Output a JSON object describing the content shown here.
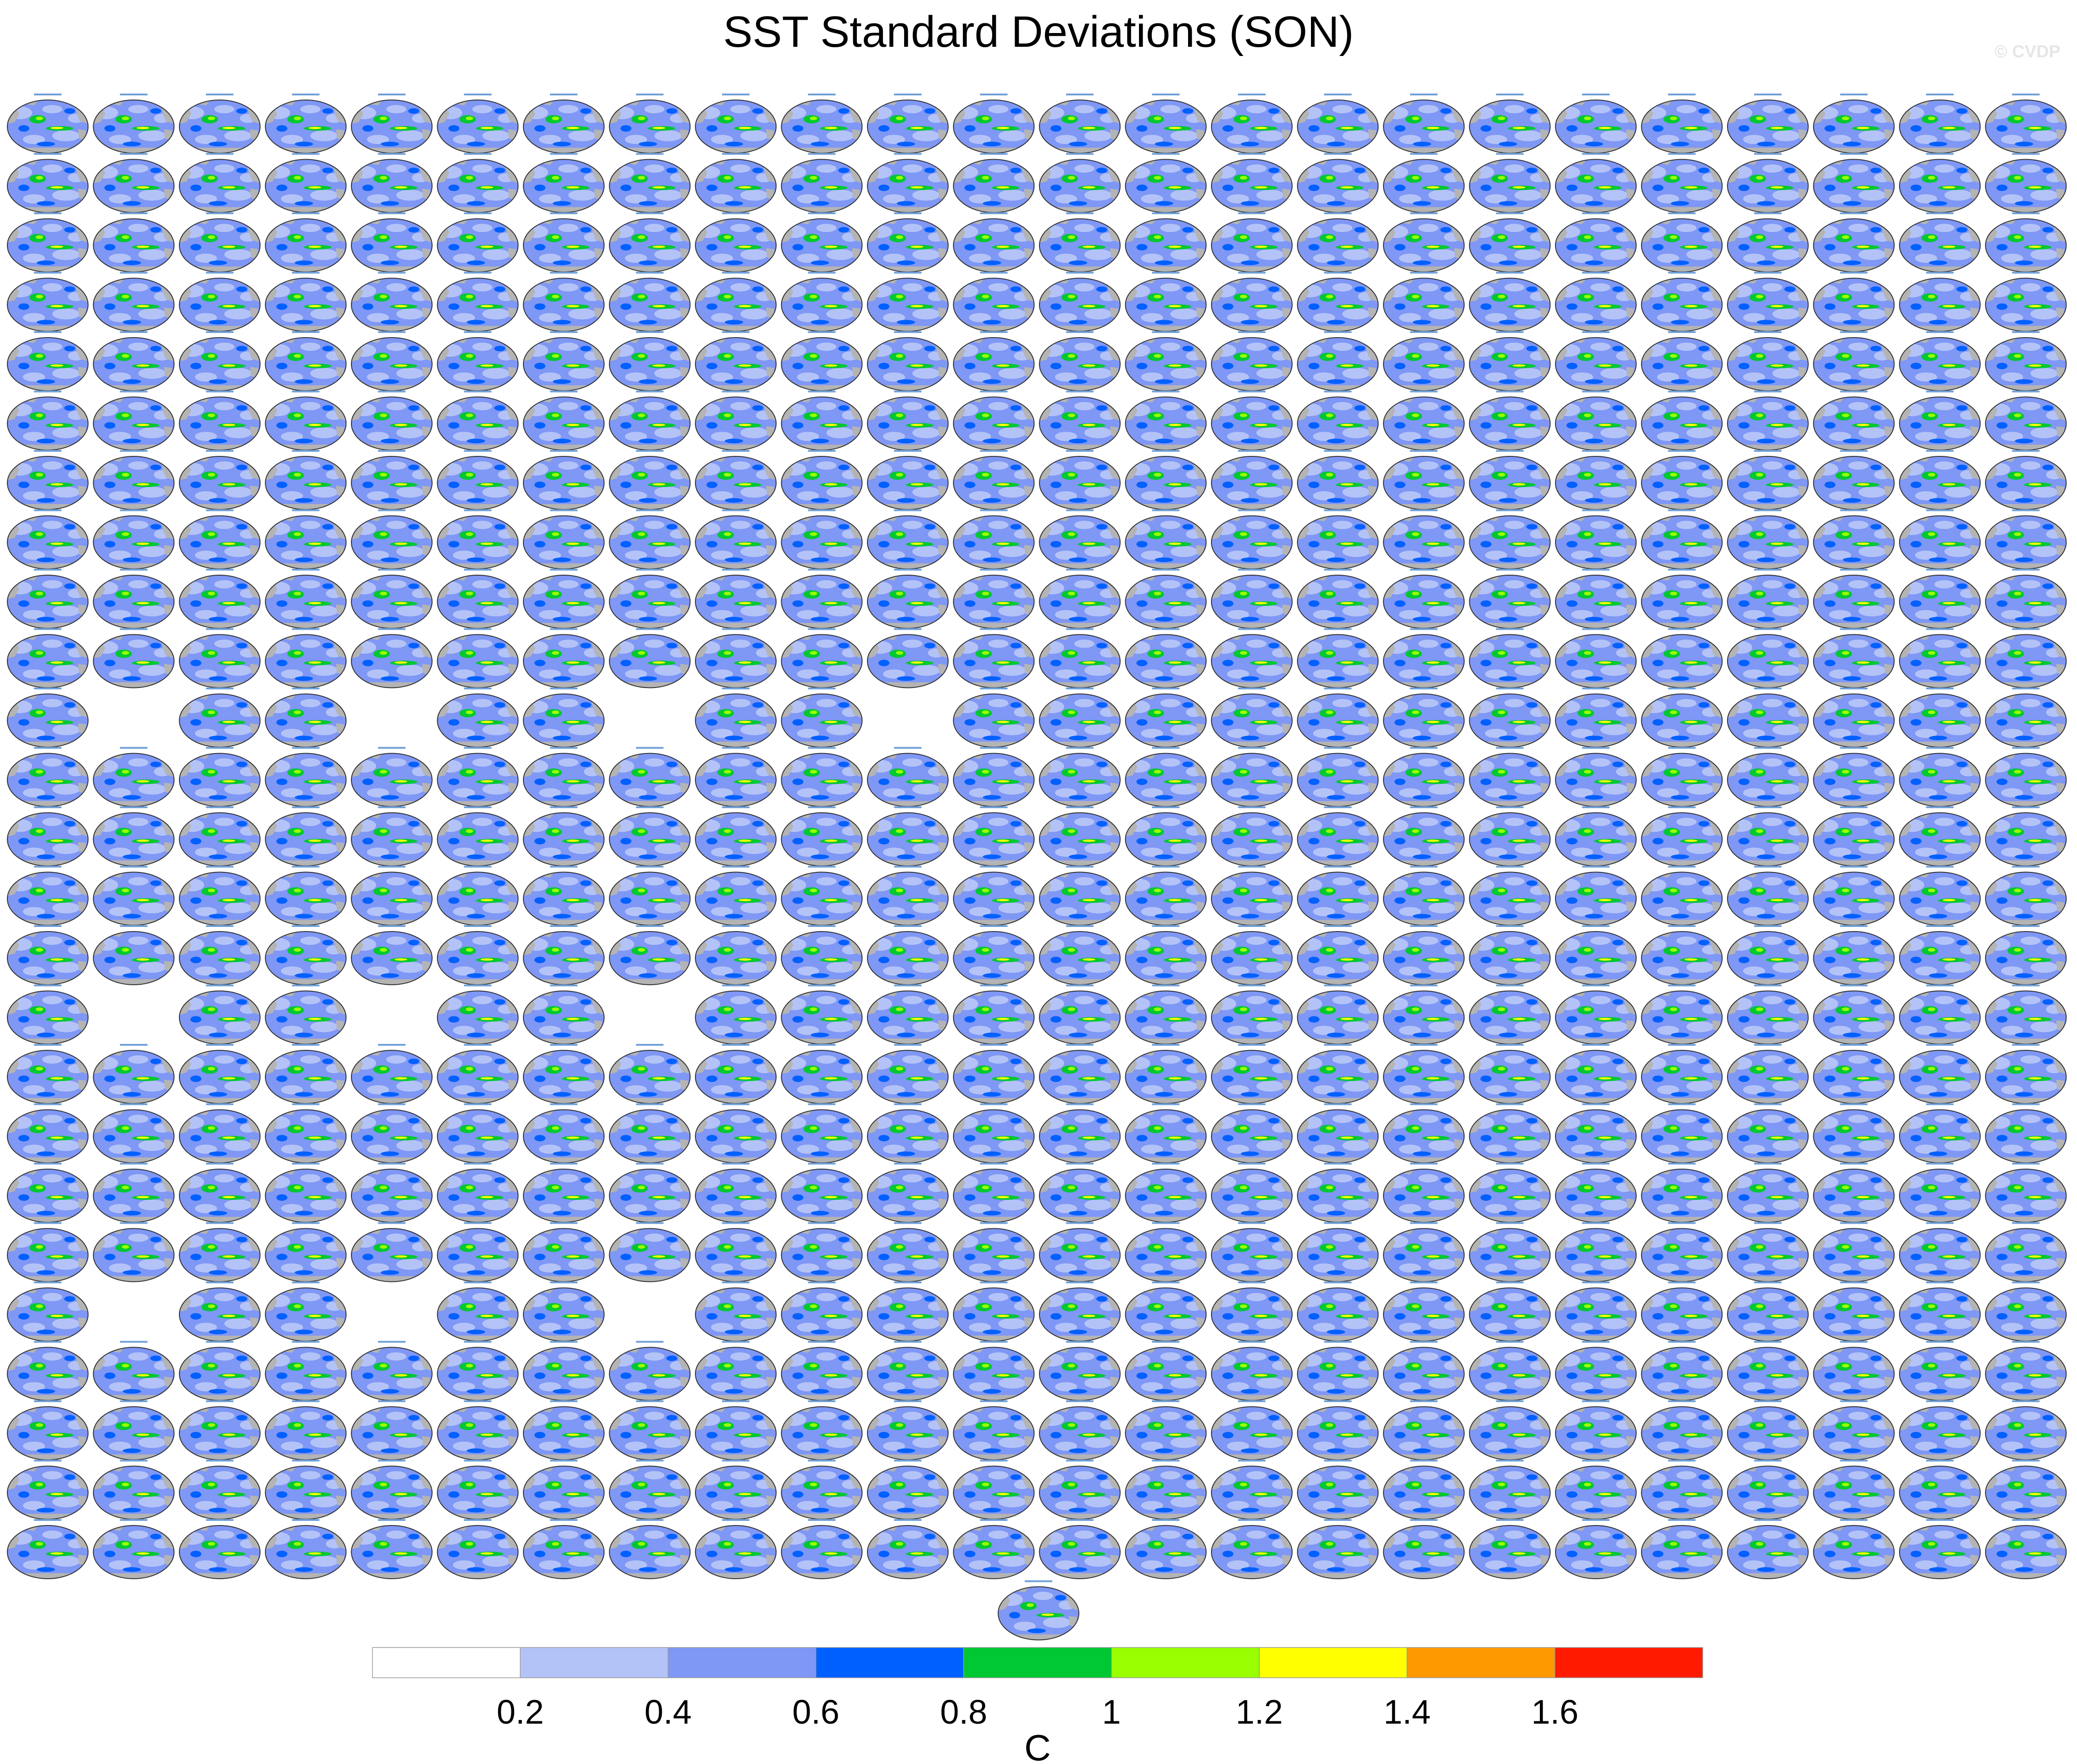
{
  "chart_data": {
    "type": "heatmap",
    "title": "SST Standard Deviations (SON)",
    "watermark": "© CVDP",
    "panel_grid": {
      "rows": 25,
      "columns": 24,
      "missing_panels": [
        [
          10,
          1
        ],
        [
          10,
          4
        ],
        [
          10,
          7
        ],
        [
          10,
          10
        ],
        [
          15,
          1
        ],
        [
          15,
          4
        ],
        [
          15,
          7
        ],
        [
          20,
          1
        ],
        [
          20,
          4
        ],
        [
          20,
          7
        ]
      ],
      "extra_panels": 1
    },
    "colorbar": {
      "unit_label": "C",
      "levels": [
        0.2,
        0.4,
        0.6,
        0.8,
        1,
        1.2,
        1.4,
        1.6
      ],
      "tick_labels": [
        "0.2",
        "0.4",
        "0.6",
        "0.8",
        "1",
        "1.2",
        "1.4",
        "1.6"
      ],
      "colors": [
        "#ffffff",
        "#b4c3f7",
        "#7f97f5",
        "#0060ff",
        "#00c832",
        "#99ff00",
        "#ffff00",
        "#ff9900",
        "#ff1a00"
      ],
      "land_color": "#b4b4b4",
      "placement": "bottom"
    }
  }
}
